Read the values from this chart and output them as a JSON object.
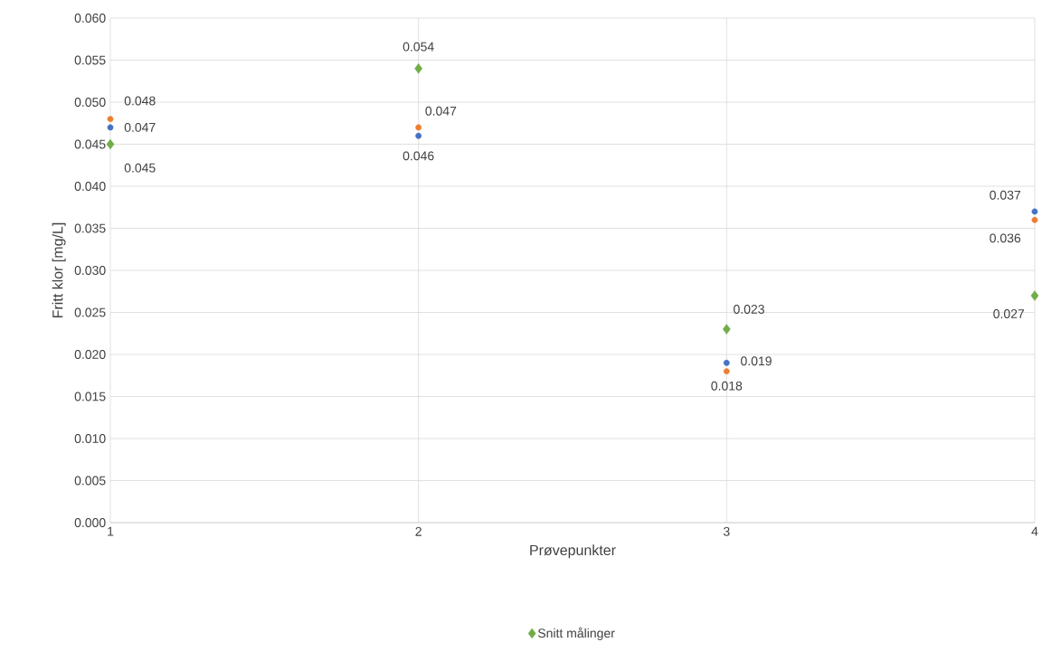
{
  "chart_data": {
    "type": "scatter",
    "xlabel": "Prøvepunkter",
    "ylabel": "Fritt klor [mg/L]",
    "x": [
      1,
      2,
      3,
      4
    ],
    "xlim": [
      1,
      4
    ],
    "xticks": [
      1,
      2,
      3,
      4
    ],
    "ylim": [
      0,
      0.06
    ],
    "yticks": [
      {
        "value": 0,
        "label": "0.000"
      },
      {
        "value": 0.005,
        "label": "0.005"
      },
      {
        "value": 0.01,
        "label": "0.010"
      },
      {
        "value": 0.015,
        "label": "0.015"
      },
      {
        "value": 0.02,
        "label": "0.020"
      },
      {
        "value": 0.025,
        "label": "0.025"
      },
      {
        "value": 0.03,
        "label": "0.030"
      },
      {
        "value": 0.035,
        "label": "0.035"
      },
      {
        "value": 0.04,
        "label": "0.040"
      },
      {
        "value": 0.045,
        "label": "0.045"
      },
      {
        "value": 0.05,
        "label": "0.050"
      },
      {
        "value": 0.055,
        "label": "0.055"
      },
      {
        "value": 0.06,
        "label": "0.060"
      }
    ],
    "grid": true,
    "legend": "bottom",
    "data_labels": true,
    "series": [
      {
        "color": "#4472c4",
        "marker": "circle",
        "values": [
          0.047,
          0.046,
          0.019,
          0.037
        ]
      },
      {
        "color": "#ed7d31",
        "marker": "circle",
        "values": [
          0.048,
          0.047,
          0.018,
          0.036
        ]
      },
      {
        "name": "Snitt målinger",
        "color": "#70ad47",
        "marker": "diamond",
        "values": [
          0.045,
          0.054,
          0.023,
          0.027
        ]
      }
    ]
  }
}
